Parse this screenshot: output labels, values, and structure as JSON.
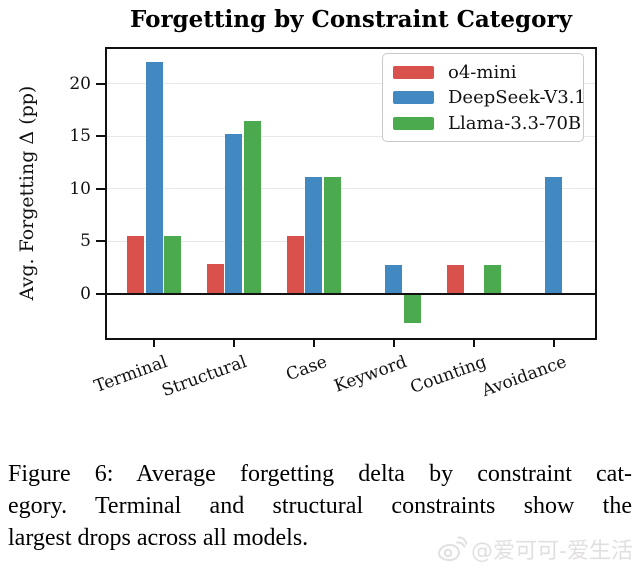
{
  "chart_data": {
    "type": "bar",
    "title": "Forgetting by Constraint Category",
    "ylabel": "Avg. Forgetting Δ (pp)",
    "categories": [
      "Terminal",
      "Structural",
      "Case",
      "Keyword",
      "Counting",
      "Avoidance"
    ],
    "series": [
      {
        "name": "o4-mini",
        "color": "#d9514d",
        "values": [
          5.5,
          2.8,
          5.5,
          0,
          2.7,
          0
        ]
      },
      {
        "name": "DeepSeek-V3.1",
        "color": "#4289c2",
        "values": [
          22.1,
          15.2,
          11.1,
          2.7,
          0,
          11.1
        ]
      },
      {
        "name": "Llama-3.3-70B",
        "color": "#4caa4e",
        "values": [
          5.5,
          16.5,
          11.1,
          -2.8,
          2.7,
          0
        ]
      }
    ],
    "yticks": [
      0,
      5,
      10,
      15,
      20
    ],
    "ylim": [
      -4.4,
      23.5
    ],
    "grid": true,
    "grid_color": "#e8e8e8",
    "zero_line": true,
    "legend_position": "upper right"
  },
  "caption": {
    "lines": [
      "Figure 6:  Average forgetting delta by constraint cat-",
      "egory.  Terminal and structural constraints show the",
      "largest drops across all models."
    ]
  },
  "watermark": {
    "icon": "weibo-icon",
    "text": "@爱可可-爱生活"
  }
}
